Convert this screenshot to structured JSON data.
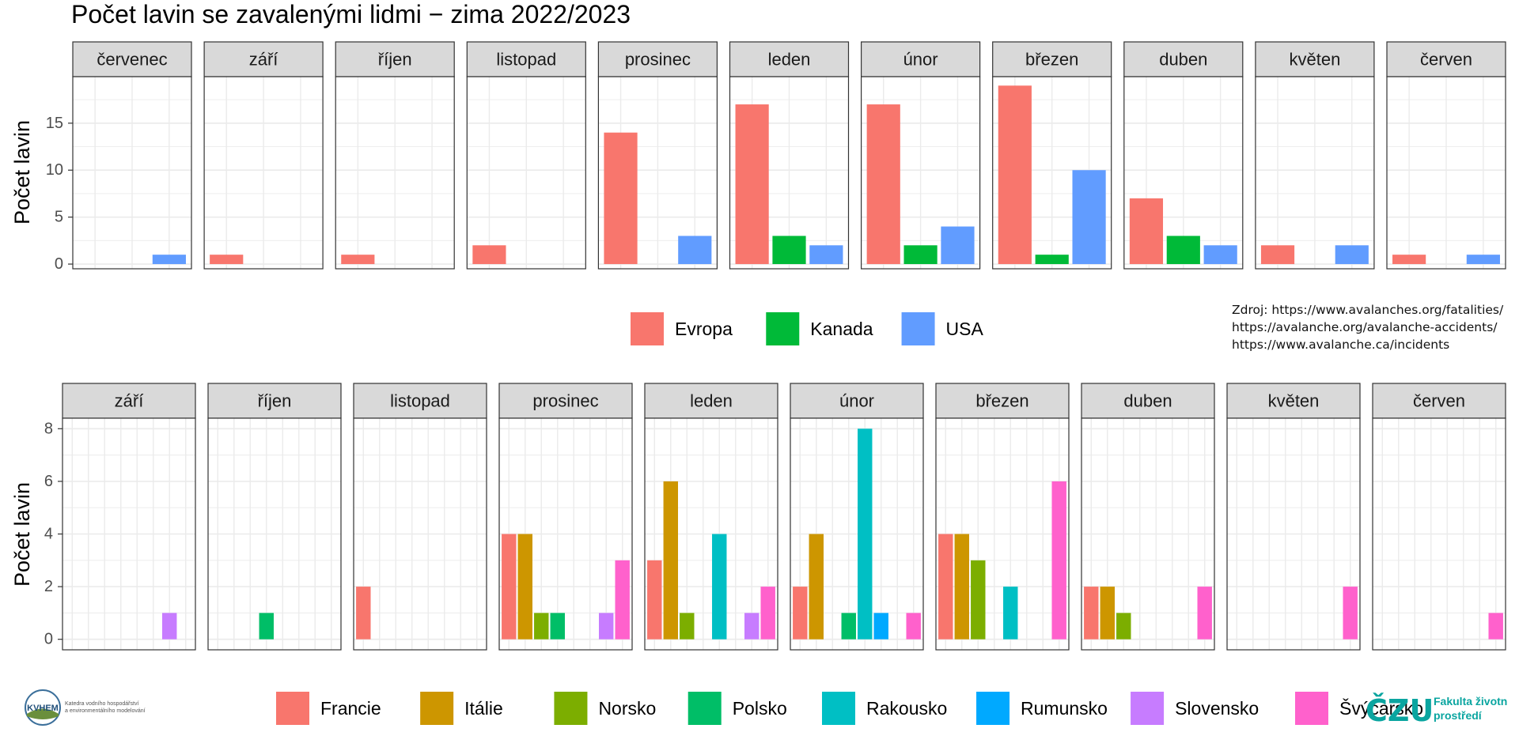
{
  "title": "Počet lavin se zavalenými lidmi − zima 2022/2023",
  "source": {
    "lines": [
      "Zdroj: https://www.avalanches.org/fatalities/",
      "https://avalanche.org/avalanche-accidents/",
      "https://www.avalanche.ca/incidents"
    ]
  },
  "logos": {
    "left": {
      "name": "KVHEM",
      "line1": "Katedra vodního hospodářství",
      "line2": "a environmentálního modelování"
    },
    "right": {
      "name": "ČZU",
      "line1": "Fakulta životního",
      "line2": "prostředí"
    }
  },
  "colors": {
    "Evropa": "#F8766D",
    "Kanada": "#00BA38",
    "USA": "#619CFF",
    "Francie": "#F8766D",
    "Itálie": "#CD9600",
    "Norsko": "#7CAE00",
    "Polsko": "#00BE67",
    "Rakousko": "#00BFC4",
    "Rumunsko": "#00A9FF",
    "Slovensko": "#C77CFF",
    "Švýcarsko": "#FF61CC",
    "strip_bg": "#D9D9D9",
    "grid": "#EBEBEB",
    "axis_text": "#4D4D4D",
    "logo_teal": "#0AA5A0"
  },
  "chart_data": [
    {
      "type": "bar",
      "facet": "month",
      "ylabel": "Počet lavin",
      "ylim": [
        -0.5,
        19.95
      ],
      "yticks": [
        0,
        5,
        10,
        15
      ],
      "categories": [
        "Evropa",
        "Kanada",
        "USA"
      ],
      "panels": [
        {
          "label": "červenec",
          "values": [
            0,
            0,
            1
          ]
        },
        {
          "label": "září",
          "values": [
            1,
            0,
            0
          ]
        },
        {
          "label": "říjen",
          "values": [
            1,
            0,
            0
          ]
        },
        {
          "label": "listopad",
          "values": [
            2,
            0,
            0
          ]
        },
        {
          "label": "prosinec",
          "values": [
            14,
            0,
            3
          ]
        },
        {
          "label": "leden",
          "values": [
            17,
            3,
            2
          ]
        },
        {
          "label": "únor",
          "values": [
            17,
            2,
            4
          ]
        },
        {
          "label": "březen",
          "values": [
            19,
            1,
            10
          ]
        },
        {
          "label": "duben",
          "values": [
            7,
            3,
            2
          ]
        },
        {
          "label": "květen",
          "values": [
            2,
            0,
            2
          ]
        },
        {
          "label": "červen",
          "values": [
            1,
            0,
            1
          ]
        }
      ],
      "legend": [
        "Evropa",
        "Kanada",
        "USA"
      ]
    },
    {
      "type": "bar",
      "facet": "month",
      "ylabel": "Počet lavin",
      "ylim": [
        -0.4,
        8.4
      ],
      "yticks": [
        0,
        2,
        4,
        6,
        8
      ],
      "categories": [
        "Francie",
        "Itálie",
        "Norsko",
        "Polsko",
        "Rakousko",
        "Rumunsko",
        "Slovensko",
        "Švýcarsko"
      ],
      "panels": [
        {
          "label": "září",
          "values": [
            0,
            0,
            0,
            0,
            0,
            0,
            1,
            0
          ]
        },
        {
          "label": "říjen",
          "values": [
            0,
            0,
            0,
            1,
            0,
            0,
            0,
            0
          ]
        },
        {
          "label": "listopad",
          "values": [
            2,
            0,
            0,
            0,
            0,
            0,
            0,
            0
          ]
        },
        {
          "label": "prosinec",
          "values": [
            4,
            4,
            1,
            1,
            0,
            0,
            1,
            3
          ]
        },
        {
          "label": "leden",
          "values": [
            3,
            6,
            1,
            0,
            4,
            0,
            1,
            2
          ]
        },
        {
          "label": "únor",
          "values": [
            2,
            4,
            0,
            1,
            8,
            1,
            0,
            1
          ]
        },
        {
          "label": "březen",
          "values": [
            4,
            4,
            3,
            0,
            2,
            0,
            0,
            6
          ]
        },
        {
          "label": "duben",
          "values": [
            2,
            2,
            1,
            0,
            0,
            0,
            0,
            2
          ]
        },
        {
          "label": "květen",
          "values": [
            0,
            0,
            0,
            0,
            0,
            0,
            0,
            2
          ]
        },
        {
          "label": "červen",
          "values": [
            0,
            0,
            0,
            0,
            0,
            0,
            0,
            1
          ]
        }
      ],
      "legend": [
        "Francie",
        "Itálie",
        "Norsko",
        "Polsko",
        "Rakousko",
        "Rumunsko",
        "Slovensko",
        "Švýcarsko"
      ]
    }
  ]
}
